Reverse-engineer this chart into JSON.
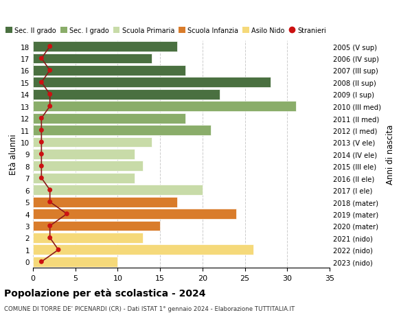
{
  "ages": [
    18,
    17,
    16,
    15,
    14,
    13,
    12,
    11,
    10,
    9,
    8,
    7,
    6,
    5,
    4,
    3,
    2,
    1,
    0
  ],
  "years_labels": [
    "2005 (V sup)",
    "2006 (IV sup)",
    "2007 (III sup)",
    "2008 (II sup)",
    "2009 (I sup)",
    "2010 (III med)",
    "2011 (II med)",
    "2012 (I med)",
    "2013 (V ele)",
    "2014 (IV ele)",
    "2015 (III ele)",
    "2016 (II ele)",
    "2017 (I ele)",
    "2018 (mater)",
    "2019 (mater)",
    "2020 (mater)",
    "2021 (nido)",
    "2022 (nido)",
    "2023 (nido)"
  ],
  "bar_values": [
    17,
    14,
    18,
    28,
    22,
    31,
    18,
    21,
    14,
    12,
    13,
    12,
    20,
    17,
    24,
    15,
    13,
    26,
    10
  ],
  "bar_colors": [
    "#4a7040",
    "#4a7040",
    "#4a7040",
    "#4a7040",
    "#4a7040",
    "#8aad6a",
    "#8aad6a",
    "#8aad6a",
    "#c8dba8",
    "#c8dba8",
    "#c8dba8",
    "#c8dba8",
    "#c8dba8",
    "#d97c2b",
    "#d97c2b",
    "#d97c2b",
    "#f5d97a",
    "#f5d97a",
    "#f5d97a"
  ],
  "stranieri_values": [
    2,
    1,
    2,
    1,
    2,
    2,
    1,
    1,
    1,
    1,
    1,
    1,
    2,
    2,
    4,
    2,
    2,
    3,
    1
  ],
  "title": "Popolazione per età scolastica - 2024",
  "subtitle": "COMUNE DI TORRE DE' PICENARDI (CR) - Dati ISTAT 1° gennaio 2024 - Elaborazione TUTTITALIA.IT",
  "ylabel_left": "Età alunni",
  "ylabel_right": "Anni di nascita",
  "xlim": [
    0,
    35
  ],
  "xticks": [
    0,
    5,
    10,
    15,
    20,
    25,
    30,
    35
  ],
  "legend_entries": [
    "Sec. II grado",
    "Sec. I grado",
    "Scuola Primaria",
    "Scuola Infanzia",
    "Asilo Nido",
    "Stranieri"
  ],
  "legend_colors": [
    "#4a7040",
    "#8aad6a",
    "#c8dba8",
    "#d97c2b",
    "#f5d97a",
    "#cc1111"
  ],
  "background_color": "#ffffff",
  "grid_color": "#cccccc",
  "bar_edge_color": "white",
  "stranieri_line_color": "#8b1a1a",
  "stranieri_dot_color": "#cc1111"
}
